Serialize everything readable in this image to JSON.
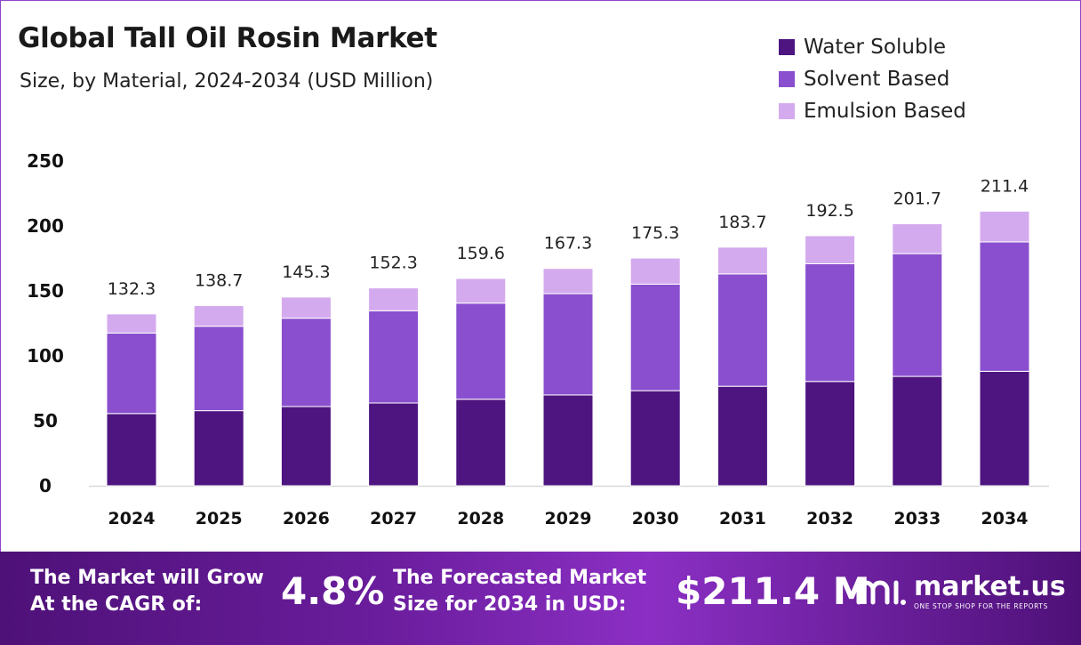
{
  "header": {
    "title": "Global Tall Oil Rosin Market",
    "subtitle": "Size, by Material, 2024-2034 (USD Million)"
  },
  "legend": [
    {
      "label": "Water Soluble",
      "color": "#4e1581"
    },
    {
      "label": "Solvent Based",
      "color": "#8a4fce"
    },
    {
      "label": "Emulsion Based",
      "color": "#d4aaee"
    }
  ],
  "chart_data": {
    "type": "bar",
    "stacked": true,
    "categories": [
      "2024",
      "2025",
      "2026",
      "2027",
      "2028",
      "2029",
      "2030",
      "2031",
      "2032",
      "2033",
      "2034"
    ],
    "series": [
      {
        "name": "Water Soluble",
        "values": [
          55.6,
          57.8,
          61.0,
          63.7,
          66.6,
          69.9,
          73.2,
          76.6,
          80.3,
          84.2,
          88.1
        ]
      },
      {
        "name": "Solvent Based",
        "values": [
          62.0,
          65.0,
          68.0,
          71.0,
          74.0,
          78.0,
          82.0,
          86.5,
          90.6,
          94.5,
          99.6
        ]
      },
      {
        "name": "Emulsion Based",
        "values": [
          14.7,
          15.9,
          16.3,
          17.6,
          19.0,
          19.4,
          20.1,
          20.6,
          21.6,
          23.0,
          23.7
        ]
      }
    ],
    "totals": [
      "132.3",
      "138.7",
      "145.3",
      "152.3",
      "159.6",
      "167.3",
      "175.3",
      "183.7",
      "192.5",
      "201.7",
      "211.4"
    ],
    "yticks": [
      "0",
      "50",
      "100",
      "150",
      "200",
      "250"
    ],
    "ylim": [
      0,
      250
    ],
    "grid": false,
    "legend_position": "top-right"
  },
  "footer": {
    "cagr_text_line1": "The Market will Grow",
    "cagr_text_line2": "At the CAGR of:",
    "cagr_value": "4.8%",
    "forecast_text_line1": "The Forecasted Market",
    "forecast_text_line2": "Size for 2034 in USD:",
    "forecast_value": "$211.4 M",
    "brand_name": "market.us",
    "brand_tagline": "ONE STOP SHOP FOR THE REPORTS"
  }
}
